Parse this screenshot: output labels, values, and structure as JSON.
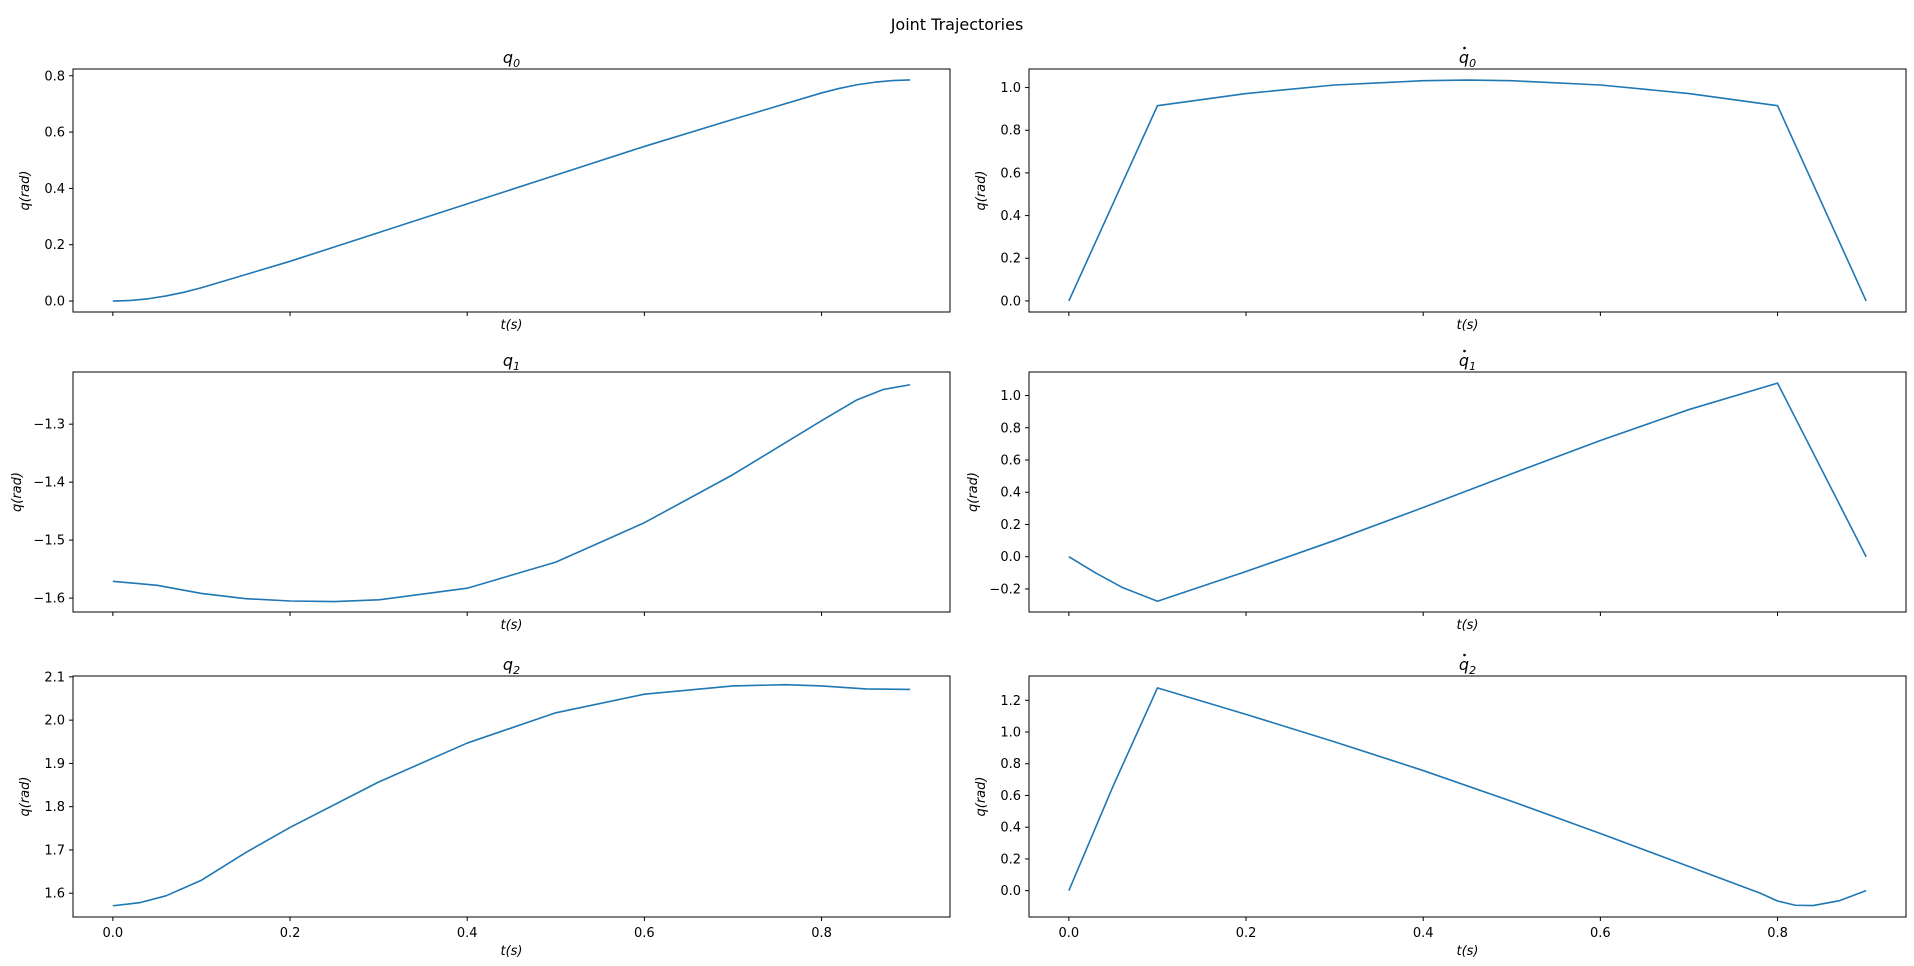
{
  "figure_title": "Joint Trajectories",
  "line_color": "#1f77b4",
  "chart_data": [
    {
      "type": "line",
      "title": "q",
      "title_sub": "0",
      "title_dot": false,
      "xlabel": "t(s)",
      "ylabel": "q(rad)",
      "xlim": [
        -0.045,
        0.945
      ],
      "ylim": [
        -0.039,
        0.824
      ],
      "xticks": [
        0.0,
        0.2,
        0.4,
        0.6,
        0.8
      ],
      "show_xtick_labels": false,
      "yticks": [
        0.0,
        0.2,
        0.4,
        0.6,
        0.8
      ],
      "ytick_labels": [
        "0.0",
        "0.2",
        "0.4",
        "0.6",
        "0.8"
      ],
      "series": [
        {
          "x": [
            0,
            0.02,
            0.04,
            0.06,
            0.08,
            0.1,
            0.2,
            0.3,
            0.4,
            0.5,
            0.6,
            0.7,
            0.8,
            0.82,
            0.84,
            0.86,
            0.88,
            0.9
          ],
          "y": [
            0,
            0.002,
            0.008,
            0.018,
            0.031,
            0.047,
            0.141,
            0.243,
            0.345,
            0.447,
            0.549,
            0.645,
            0.739,
            0.755,
            0.768,
            0.777,
            0.783,
            0.785
          ]
        }
      ]
    },
    {
      "type": "line",
      "title": "q",
      "title_sub": "0",
      "title_dot": true,
      "xlabel": "t(s)",
      "ylabel": "q(rad)",
      "xlim": [
        -0.045,
        0.945
      ],
      "ylim": [
        -0.052,
        1.087
      ],
      "xticks": [
        0.0,
        0.2,
        0.4,
        0.6,
        0.8
      ],
      "show_xtick_labels": false,
      "yticks": [
        0.0,
        0.2,
        0.4,
        0.6,
        0.8,
        1.0
      ],
      "ytick_labels": [
        "0.0",
        "0.2",
        "0.4",
        "0.6",
        "0.8",
        "1.0"
      ],
      "series": [
        {
          "x": [
            0,
            0.1,
            0.2,
            0.3,
            0.4,
            0.45,
            0.5,
            0.6,
            0.7,
            0.8,
            0.9
          ],
          "y": [
            0,
            0.915,
            0.972,
            1.012,
            1.032,
            1.035,
            1.032,
            1.012,
            0.972,
            0.915,
            0
          ]
        }
      ]
    },
    {
      "type": "line",
      "title": "q",
      "title_sub": "1",
      "title_dot": false,
      "xlabel": "t(s)",
      "ylabel": "q(rad)",
      "xlim": [
        -0.045,
        0.945
      ],
      "ylim": [
        -1.624,
        -1.21
      ],
      "xticks": [
        0.0,
        0.2,
        0.4,
        0.6,
        0.8
      ],
      "show_xtick_labels": false,
      "yticks": [
        -1.6,
        -1.5,
        -1.4,
        -1.3
      ],
      "ytick_labels": [
        "−1.6",
        "−1.5",
        "−1.4",
        "−1.3"
      ],
      "series": [
        {
          "x": [
            0,
            0.05,
            0.1,
            0.15,
            0.2,
            0.25,
            0.3,
            0.4,
            0.5,
            0.6,
            0.7,
            0.8,
            0.84,
            0.87,
            0.9
          ],
          "y": [
            -1.571,
            -1.578,
            -1.592,
            -1.601,
            -1.605,
            -1.606,
            -1.603,
            -1.583,
            -1.538,
            -1.47,
            -1.387,
            -1.294,
            -1.258,
            -1.24,
            -1.232
          ]
        }
      ]
    },
    {
      "type": "line",
      "title": "q",
      "title_sub": "1",
      "title_dot": true,
      "xlabel": "t(s)",
      "ylabel": "q(rad)",
      "xlim": [
        -0.045,
        0.945
      ],
      "ylim": [
        -0.343,
        1.146
      ],
      "xticks": [
        0.0,
        0.2,
        0.4,
        0.6,
        0.8
      ],
      "show_xtick_labels": false,
      "yticks": [
        -0.2,
        0.0,
        0.2,
        0.4,
        0.6,
        0.8,
        1.0
      ],
      "ytick_labels": [
        "−0.2",
        "0.0",
        "0.2",
        "0.4",
        "0.6",
        "0.8",
        "1.0"
      ],
      "series": [
        {
          "x": [
            0,
            0.03,
            0.06,
            0.1,
            0.2,
            0.3,
            0.4,
            0.5,
            0.6,
            0.7,
            0.8,
            0.9
          ],
          "y": [
            0,
            -0.1,
            -0.19,
            -0.276,
            -0.092,
            0.101,
            0.305,
            0.515,
            0.721,
            0.913,
            1.077,
            0
          ]
        }
      ]
    },
    {
      "type": "line",
      "title": "q",
      "title_sub": "2",
      "title_dot": false,
      "xlabel": "t(s)",
      "ylabel": "q(rad)",
      "xlim": [
        -0.045,
        0.945
      ],
      "ylim": [
        1.545,
        2.102
      ],
      "xticks": [
        0.0,
        0.2,
        0.4,
        0.6,
        0.8
      ],
      "show_xtick_labels": true,
      "xtick_labels": [
        "0.0",
        "0.2",
        "0.4",
        "0.6",
        "0.8"
      ],
      "yticks": [
        1.6,
        1.7,
        1.8,
        1.9,
        2.0,
        2.1
      ],
      "ytick_labels": [
        "1.6",
        "1.7",
        "1.8",
        "1.9",
        "2.0",
        "2.1"
      ],
      "series": [
        {
          "x": [
            0,
            0.03,
            0.06,
            0.1,
            0.15,
            0.2,
            0.3,
            0.4,
            0.5,
            0.6,
            0.7,
            0.76,
            0.8,
            0.85,
            0.9
          ],
          "y": [
            1.571,
            1.578,
            1.594,
            1.63,
            1.694,
            1.752,
            1.857,
            1.947,
            2.017,
            2.06,
            2.079,
            2.082,
            2.079,
            2.072,
            2.071
          ]
        }
      ]
    },
    {
      "type": "line",
      "title": "q",
      "title_sub": "2",
      "title_dot": true,
      "xlabel": "t(s)",
      "ylabel": "q(rad)",
      "xlim": [
        -0.045,
        0.945
      ],
      "ylim": [
        -0.166,
        1.353
      ],
      "xticks": [
        0.0,
        0.2,
        0.4,
        0.6,
        0.8
      ],
      "show_xtick_labels": true,
      "xtick_labels": [
        "0.0",
        "0.2",
        "0.4",
        "0.6",
        "0.8"
      ],
      "yticks": [
        0.0,
        0.2,
        0.4,
        0.6,
        0.8,
        1.0,
        1.2
      ],
      "ytick_labels": [
        "0.0",
        "0.2",
        "0.4",
        "0.6",
        "0.8",
        "1.0",
        "1.2"
      ],
      "series": [
        {
          "x": [
            0,
            0.05,
            0.1,
            0.2,
            0.3,
            0.4,
            0.5,
            0.6,
            0.7,
            0.78,
            0.8,
            0.82,
            0.84,
            0.87,
            0.9
          ],
          "y": [
            0,
            0.66,
            1.278,
            1.111,
            0.938,
            0.757,
            0.563,
            0.36,
            0.152,
            -0.015,
            -0.065,
            -0.092,
            -0.094,
            -0.063,
            0
          ]
        }
      ]
    }
  ]
}
